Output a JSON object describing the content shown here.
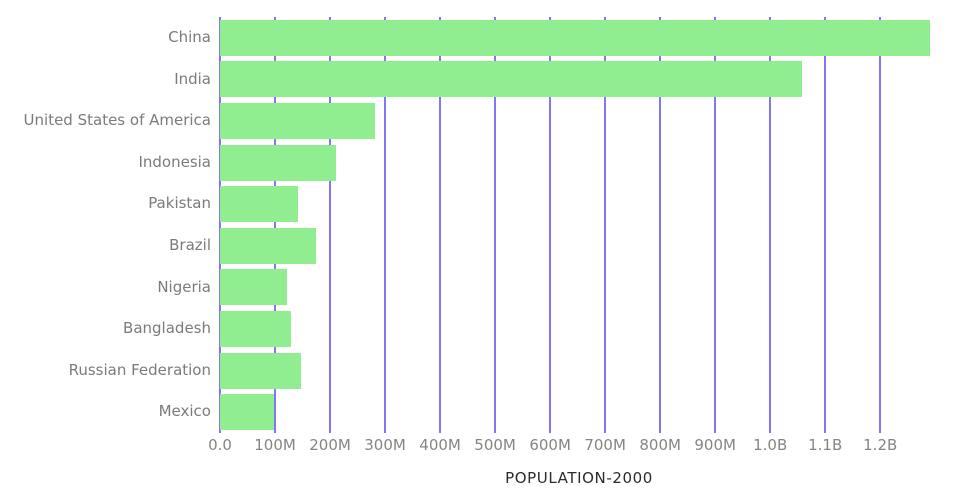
{
  "chart_data": {
    "type": "bar",
    "orientation": "horizontal",
    "title": "",
    "xlabel": "POPULATION-2000",
    "ylabel": "",
    "unit": "millions of people",
    "categories": [
      "China",
      "India",
      "United States of America",
      "Indonesia",
      "Pakistan",
      "Brazil",
      "Nigeria",
      "Bangladesh",
      "Russian Federation",
      "Mexico"
    ],
    "values_millions": [
      1291,
      1057,
      282,
      211,
      142,
      175,
      122,
      129,
      147,
      98
    ],
    "x_axis": {
      "range_millions": [
        0,
        1305
      ],
      "ticks": [
        {
          "label": "0.0",
          "value_millions": 0
        },
        {
          "label": "100M",
          "value_millions": 100
        },
        {
          "label": "200M",
          "value_millions": 200
        },
        {
          "label": "300M",
          "value_millions": 300
        },
        {
          "label": "400M",
          "value_millions": 400
        },
        {
          "label": "500M",
          "value_millions": 500
        },
        {
          "label": "600M",
          "value_millions": 600
        },
        {
          "label": "700M",
          "value_millions": 700
        },
        {
          "label": "800M",
          "value_millions": 800
        },
        {
          "label": "900M",
          "value_millions": 900
        },
        {
          "label": "1.0B",
          "value_millions": 1000
        },
        {
          "label": "1.1B",
          "value_millions": 1100
        },
        {
          "label": "1.2B",
          "value_millions": 1200
        }
      ]
    },
    "grid": "vertical",
    "legend": "none",
    "colors": {
      "bar": "#90EE90",
      "gridline": "#7468F0",
      "category_label_text": "#7b7b7b",
      "tick_label_text": "#858585",
      "axis_title_text": "#2b2b2b",
      "background": "#ffffff"
    }
  }
}
